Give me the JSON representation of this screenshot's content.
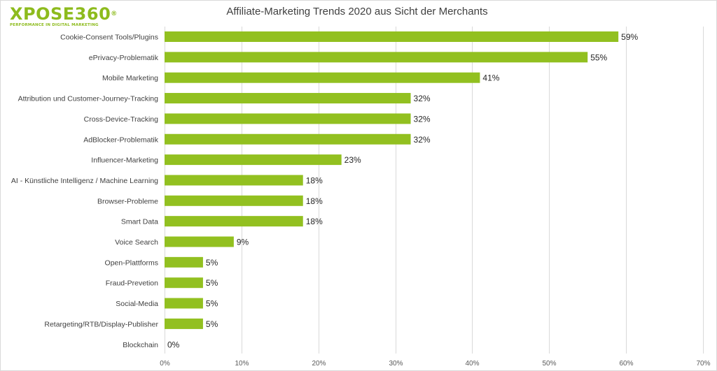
{
  "logo": {
    "wordmark": "XPOSE360",
    "registered": "®",
    "tagline": "PERFORMANCE IN DIGITAL MARKETING"
  },
  "colors": {
    "bar": "#92c020",
    "grid": "#d9d9d9",
    "brand": "#8dbb1d"
  },
  "chart_data": {
    "type": "bar",
    "orientation": "horizontal",
    "title": "Affiliate-Marketing Trends 2020 aus Sicht der Merchants",
    "xlabel": "",
    "ylabel": "",
    "categories": [
      "Cookie-Consent Tools/Plugins",
      "ePrivacy-Problematik",
      "Mobile Marketing",
      "Attribution und Customer-Journey-Tracking",
      "Cross-Device-Tracking",
      "AdBlocker-Problematik",
      "Influencer-Marketing",
      "AI - Künstliche Intelligenz / Machine Learning",
      "Browser-Probleme",
      "Smart Data",
      "Voice Search",
      "Open-Plattforms",
      "Fraud-Prevetion",
      "Social-Media",
      "Retargeting/RTB/Display-Publisher",
      "Blockchain"
    ],
    "values": [
      59,
      55,
      41,
      32,
      32,
      32,
      23,
      18,
      18,
      18,
      9,
      5,
      5,
      5,
      5,
      0
    ],
    "value_labels": [
      "59%",
      "55%",
      "41%",
      "32%",
      "32%",
      "32%",
      "23%",
      "18%",
      "18%",
      "18%",
      "9%",
      "5%",
      "5%",
      "5%",
      "5%",
      "0%"
    ],
    "xlim": [
      0,
      70
    ],
    "xticks": [
      0,
      10,
      20,
      30,
      40,
      50,
      60,
      70
    ],
    "xtick_labels": [
      "0%",
      "10%",
      "20%",
      "30%",
      "40%",
      "50%",
      "60%",
      "70%"
    ],
    "grid": true,
    "legend": "none"
  }
}
